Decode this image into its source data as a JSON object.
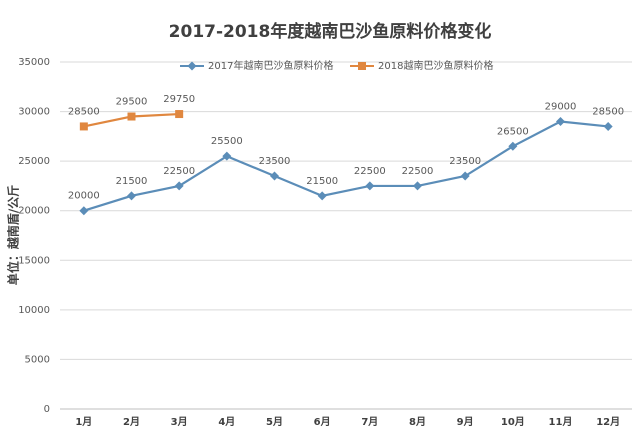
{
  "chart_data": {
    "type": "line",
    "title": "2017-2018年度越南巴沙鱼原料价格变化",
    "y_label": "单位：越南盾/公斤",
    "categories": [
      "1月",
      "2月",
      "3月",
      "4月",
      "5月",
      "6月",
      "7月",
      "8月",
      "9月",
      "10月",
      "11月",
      "12月"
    ],
    "series": [
      {
        "name": "2017年越南巴沙鱼原料价格",
        "color": "#5b8db8",
        "marker": "diamond",
        "values": [
          20000,
          21500,
          22500,
          25500,
          23500,
          21500,
          22500,
          22500,
          23500,
          26500,
          29000,
          28500
        ]
      },
      {
        "name": "2018越南巴沙鱼原料价格",
        "color": "#e0873f",
        "marker": "square",
        "values": [
          28500,
          29500,
          29750,
          null,
          null,
          null,
          null,
          null,
          null,
          null,
          null,
          null
        ]
      }
    ],
    "ylim": [
      0,
      35000
    ],
    "yticks": [
      0,
      5000,
      10000,
      15000,
      20000,
      25000,
      30000,
      35000
    ],
    "grid": true,
    "legend": "top"
  }
}
